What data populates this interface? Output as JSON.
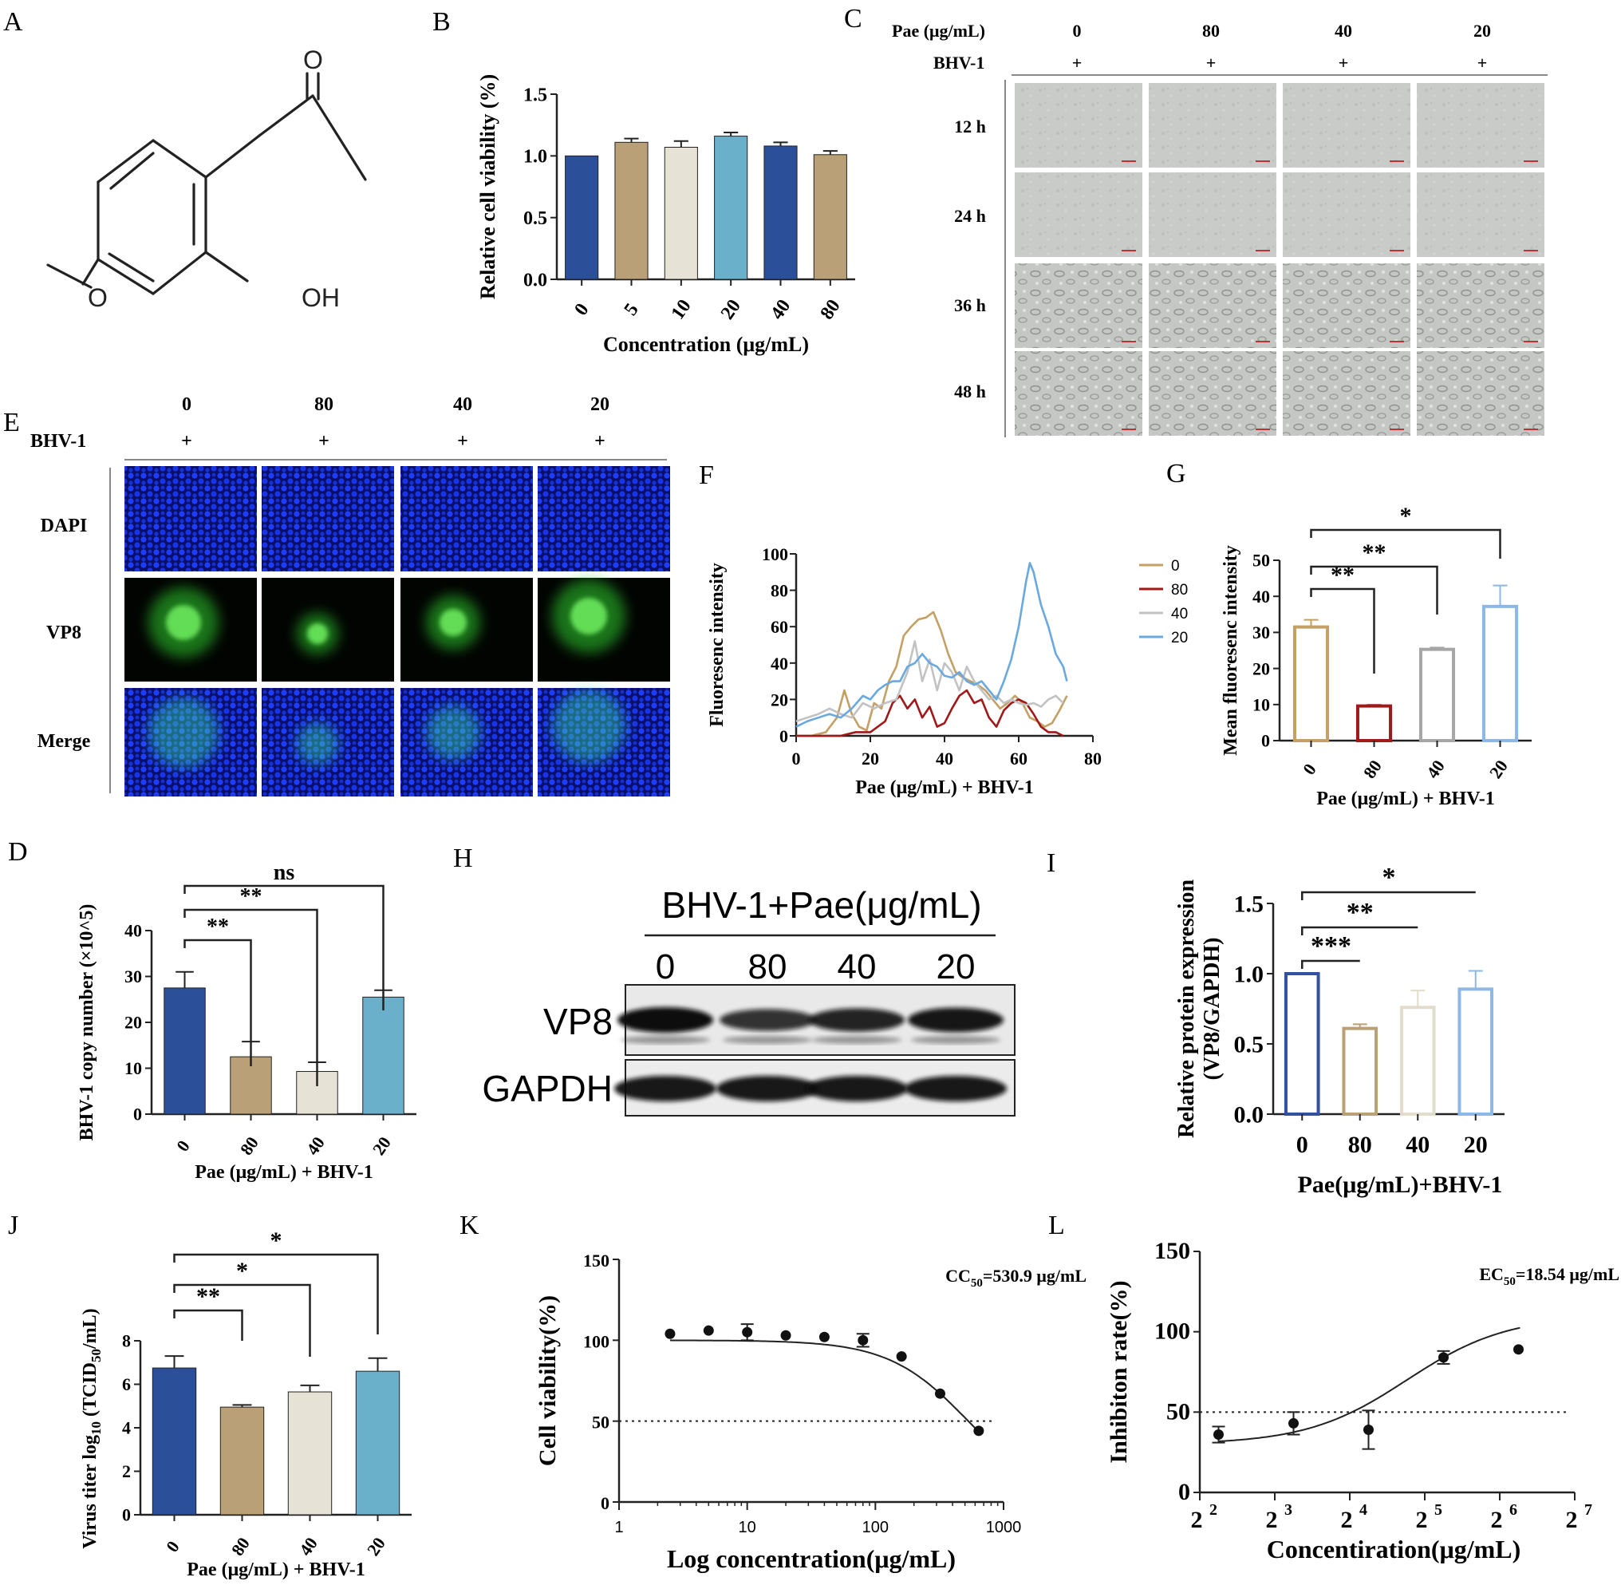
{
  "panel_letters": [
    "A",
    "B",
    "C",
    "D",
    "E",
    "F",
    "G",
    "H",
    "I",
    "J",
    "K",
    "L"
  ],
  "colors": {
    "navy": "#2c4f9a",
    "tan": "#b9a077",
    "cream": "#e7e2d6",
    "sky": "#6bb0cb",
    "gold": "#c4a064",
    "darkred": "#a11818",
    "grey": "#c2c2c2",
    "lightblue": "#6aa8e0",
    "blue_outline": "#334fa2"
  },
  "panel_a": {
    "atoms": {
      "carbonyl_o": "O",
      "methoxy_o": "O",
      "hydroxyl": "OH"
    }
  },
  "panel_c": {
    "pae_label": "Pae (μg/mL)",
    "bhv_label": "BHV-1",
    "concentrations": [
      "0",
      "80",
      "40",
      "20"
    ],
    "plus": [
      "+",
      "+",
      "+",
      "+"
    ],
    "times": [
      "12 h",
      "24 h",
      "36 h",
      "48 h"
    ]
  },
  "panel_e": {
    "concentrations": [
      "0",
      "80",
      "40",
      "20"
    ],
    "bhv_label": "BHV-1",
    "plus": [
      "+",
      "+",
      "+",
      "+"
    ],
    "rows": [
      "DAPI",
      "VP8",
      "Merge"
    ]
  },
  "panel_h": {
    "header": "BHV-1+Pae(μg/mL)",
    "lanes": [
      "0",
      "80",
      "40",
      "20"
    ],
    "rows": [
      "VP8",
      "GAPDH"
    ],
    "vp8_band_intensity": [
      1.0,
      0.62,
      0.77,
      0.9
    ]
  },
  "chart_data": [
    {
      "panel": "B",
      "type": "bar",
      "categories": [
        "0",
        "5",
        "10",
        "20",
        "40",
        "80"
      ],
      "values": [
        1.0,
        1.11,
        1.07,
        1.16,
        1.08,
        1.01
      ],
      "errors": [
        0,
        0.03,
        0.05,
        0.03,
        0.03,
        0.03
      ],
      "colors": [
        "#2c4f9a",
        "#b9a077",
        "#e7e2d6",
        "#6bb0cb",
        "#2c4f9a",
        "#b9a077"
      ],
      "xlabel": "Concentration (μg/mL)",
      "ylabel": "Relative cell viability (%)",
      "ylim": [
        0,
        1.5
      ],
      "yticks": [
        "0.0",
        "0.5",
        "1.0",
        "1.5"
      ]
    },
    {
      "panel": "D",
      "type": "bar",
      "categories": [
        "0",
        "80",
        "40",
        "20"
      ],
      "values": [
        27.5,
        12.5,
        9.3,
        25.5
      ],
      "errors": [
        3.5,
        3.3,
        2.0,
        1.5
      ],
      "colors": [
        "#2c4f9a",
        "#b9a077",
        "#e7e2d6",
        "#6bb0cb"
      ],
      "xlabel": "Pae (μg/mL) + BHV-1",
      "ylabel": "BHV-1  copy number (×10^5)",
      "ylim": [
        0,
        40
      ],
      "yticks": [
        "0",
        "10",
        "20",
        "30",
        "40"
      ],
      "significance": [
        "**",
        "**",
        "ns"
      ]
    },
    {
      "panel": "F",
      "type": "line",
      "xlabel": "Pae (μg/mL) + BHV-1",
      "ylabel": "Fluoresenc intensity",
      "xlim": [
        0,
        80
      ],
      "ylim": [
        0,
        100
      ],
      "xticks": [
        "0",
        "20",
        "40",
        "60",
        "80"
      ],
      "yticks": [
        "0",
        "20",
        "40",
        "60",
        "80",
        "100"
      ],
      "legend_position": "right",
      "series": [
        {
          "name": "0",
          "color": "#c4a064",
          "x": [
            0,
            4,
            8,
            11,
            13,
            15,
            17,
            19,
            21,
            23,
            25,
            27,
            29,
            31,
            33,
            35,
            37,
            39,
            41,
            43,
            45,
            47,
            49,
            51,
            53,
            55,
            57,
            59,
            61,
            63,
            65,
            67,
            69,
            71,
            73
          ],
          "y": [
            0,
            0,
            2,
            10,
            25,
            12,
            5,
            3,
            18,
            15,
            30,
            38,
            55,
            60,
            64,
            65,
            68,
            58,
            45,
            35,
            32,
            30,
            28,
            25,
            20,
            15,
            18,
            22,
            18,
            10,
            8,
            5,
            7,
            14,
            22
          ]
        },
        {
          "name": "80",
          "color": "#a11818",
          "x": [
            0,
            4,
            8,
            12,
            16,
            20,
            24,
            26,
            28,
            30,
            32,
            34,
            36,
            38,
            40,
            42,
            44,
            46,
            48,
            50,
            52,
            54,
            56,
            58,
            60,
            62,
            64,
            66,
            68,
            70,
            72
          ],
          "y": [
            0,
            0,
            0,
            0,
            2,
            2,
            8,
            18,
            22,
            15,
            20,
            10,
            16,
            5,
            7,
            15,
            22,
            25,
            18,
            20,
            10,
            5,
            14,
            18,
            20,
            18,
            12,
            5,
            2,
            2,
            0
          ]
        },
        {
          "name": "40",
          "color": "#c2c2c2",
          "x": [
            0,
            3,
            6,
            9,
            12,
            15,
            18,
            21,
            24,
            27,
            30,
            32,
            34,
            36,
            38,
            40,
            42,
            44,
            46,
            48,
            50,
            52,
            54,
            56,
            58,
            60,
            62,
            64,
            66,
            68,
            70,
            72
          ],
          "y": [
            8,
            10,
            12,
            15,
            12,
            10,
            18,
            15,
            18,
            20,
            35,
            52,
            30,
            42,
            25,
            40,
            35,
            25,
            38,
            30,
            25,
            20,
            22,
            18,
            20,
            18,
            17,
            18,
            16,
            20,
            22,
            18
          ]
        },
        {
          "name": "20",
          "color": "#6aa8e0",
          "x": [
            0,
            3,
            6,
            9,
            12,
            15,
            18,
            20,
            22,
            24,
            26,
            28,
            30,
            32,
            34,
            36,
            38,
            40,
            42,
            44,
            46,
            48,
            50,
            52,
            54,
            56,
            58,
            60,
            62,
            63,
            64,
            66,
            68,
            70,
            72,
            73
          ],
          "y": [
            5,
            8,
            10,
            12,
            10,
            15,
            22,
            20,
            25,
            28,
            30,
            30,
            38,
            40,
            45,
            40,
            38,
            33,
            32,
            35,
            30,
            28,
            30,
            25,
            20,
            30,
            42,
            60,
            85,
            95,
            90,
            72,
            60,
            45,
            38,
            30
          ]
        }
      ]
    },
    {
      "panel": "G",
      "type": "bar",
      "categories": [
        "0",
        "80",
        "40",
        "20"
      ],
      "values": [
        31.5,
        9.6,
        25.3,
        37.2
      ],
      "errors": [
        2.0,
        0.3,
        0.5,
        5.8
      ],
      "colors": [
        "#c4a064",
        "#a11818",
        "#a6a6a6",
        "#8db7e6"
      ],
      "style": "outline",
      "xlabel": "Pae (μg/mL) + BHV-1",
      "ylabel": "Mean fluoresenc intensity",
      "ylim": [
        0,
        50
      ],
      "yticks": [
        "0",
        "10",
        "20",
        "30",
        "40",
        "50"
      ],
      "significance": [
        "**",
        "**",
        "*"
      ]
    },
    {
      "panel": "I",
      "type": "bar",
      "categories": [
        "0",
        "80",
        "40",
        "20"
      ],
      "values": [
        1.0,
        0.61,
        0.76,
        0.89
      ],
      "errors": [
        0,
        0.03,
        0.12,
        0.13
      ],
      "colors": [
        "#334fa2",
        "#b9a077",
        "#e2dccb",
        "#8db7e6"
      ],
      "style": "outline",
      "xlabel": "Pae(μg/mL)+BHV-1",
      "ylabel": "Relative protein expression (VP8/GAPDH)",
      "ylim": [
        0,
        1.5
      ],
      "yticks": [
        "0.0",
        "0.5",
        "1.0",
        "1.5"
      ],
      "significance": [
        "***",
        "**",
        "*"
      ]
    },
    {
      "panel": "J",
      "type": "bar",
      "categories": [
        "0",
        "80",
        "40",
        "20"
      ],
      "values": [
        6.75,
        4.95,
        5.65,
        6.6
      ],
      "errors": [
        0.55,
        0.1,
        0.3,
        0.6
      ],
      "colors": [
        "#2c4f9a",
        "#b9a077",
        "#e7e2d6",
        "#6bb0cb"
      ],
      "xlabel": "Pae (μg/mL) + BHV-1",
      "ylabel_main": "Virus titer log",
      "ylabel_sub1": "10",
      "ylabel_mid": " (TCID",
      "ylabel_sub2": "50",
      "ylabel_end": "/mL)",
      "ylim": [
        0,
        8
      ],
      "yticks": [
        "0",
        "2",
        "4",
        "6",
        "8"
      ],
      "significance": [
        "**",
        "*",
        "*"
      ]
    },
    {
      "panel": "K",
      "type": "scatter",
      "x": [
        2.5,
        5,
        10,
        20,
        40,
        80,
        160,
        320,
        640
      ],
      "y": [
        104,
        106,
        105,
        103,
        102,
        100,
        90,
        67,
        44
      ],
      "errors": [
        0,
        0,
        5,
        0,
        0,
        4,
        0,
        0,
        0
      ],
      "fit": "sigmoid",
      "annotation_main": "CC",
      "annotation_sub": "50",
      "annotation_value": "=530.9 μg/mL",
      "xlabel": "Log concentration(μg/mL)",
      "ylabel": "Cell viability(%)",
      "xscale": "log",
      "xlim": [
        1,
        1000
      ],
      "ylim": [
        0,
        150
      ],
      "xticks": [
        "1",
        "10",
        "100",
        "1000"
      ],
      "yticks": [
        "0",
        "50",
        "100",
        "150"
      ],
      "reference_line": 50
    },
    {
      "panel": "L",
      "type": "scatter",
      "x": [
        2.25,
        3.25,
        4.25,
        5.25,
        6.25
      ],
      "y": [
        36,
        43,
        39,
        84,
        89
      ],
      "errors": [
        5,
        7,
        12,
        4,
        0
      ],
      "fit": "sigmoid",
      "annotation_main": "EC",
      "annotation_sub": "50",
      "annotation_value": "=18.54 μg/mL",
      "xlabel": "Concentiration(μg/mL)",
      "ylabel": "Inhibiton rate(%)",
      "xscale": "log2",
      "xlim": [
        2,
        7
      ],
      "ylim": [
        0,
        150
      ],
      "xtick_base": "2",
      "xtick_exponents": [
        "2",
        "3",
        "4",
        "5",
        "6",
        "7"
      ],
      "yticks": [
        "0",
        "50",
        "100",
        "150"
      ],
      "reference_line": 50
    }
  ]
}
